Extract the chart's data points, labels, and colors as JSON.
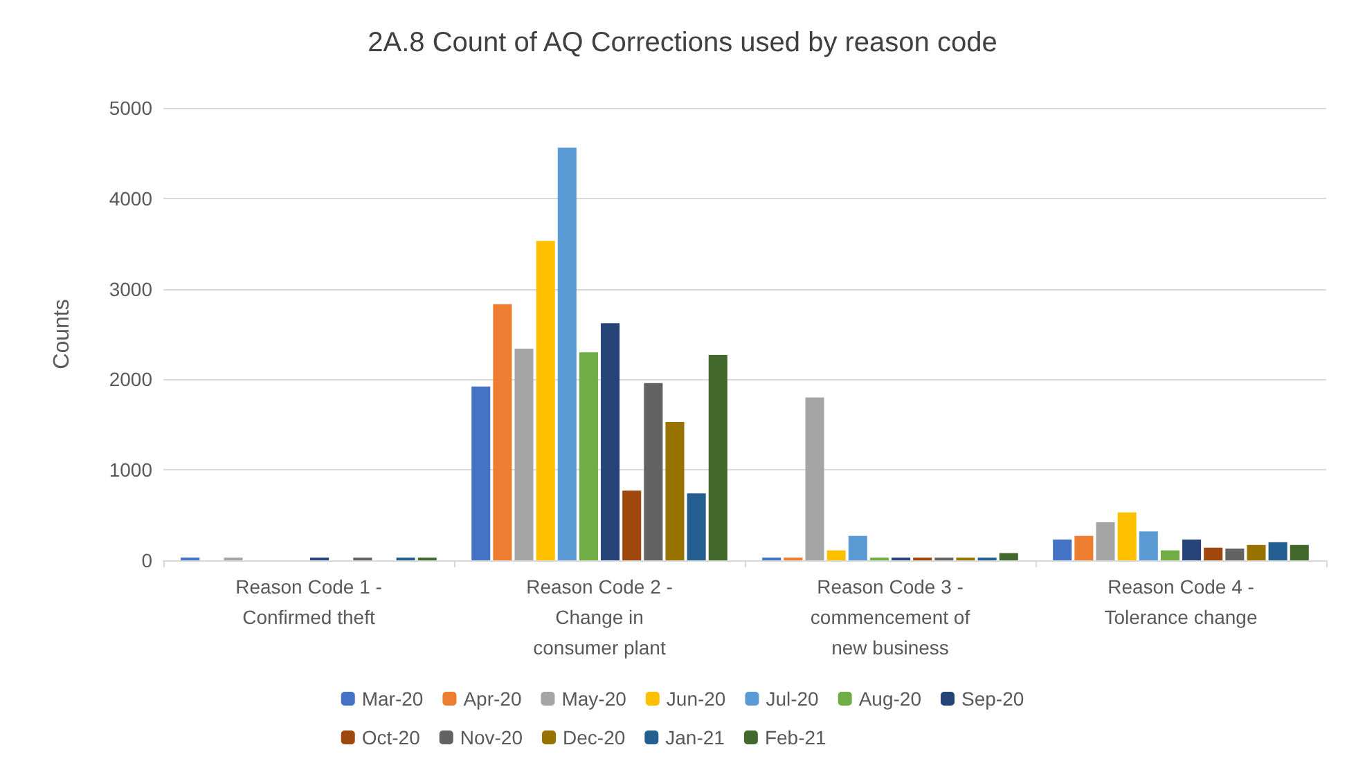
{
  "chart_data": {
    "type": "bar",
    "title": "2A.8 Count of AQ Corrections used by reason code",
    "ylabel": "Counts",
    "categories": [
      "Reason Code 1 -\nConfirmed theft",
      "Reason Code 2 -\nChange in\nconsumer plant",
      "Reason Code 3 -\ncommencement of\nnew business",
      "Reason Code 4 -\nTolerance change"
    ],
    "series": [
      {
        "name": "Mar-20",
        "color": "#4472c4",
        "values": [
          30,
          1920,
          30,
          230
        ]
      },
      {
        "name": "Apr-20",
        "color": "#ed7d31",
        "values": [
          0,
          2830,
          30,
          270
        ]
      },
      {
        "name": "May-20",
        "color": "#a5a5a5",
        "values": [
          30,
          2340,
          1800,
          420
        ]
      },
      {
        "name": "Jun-20",
        "color": "#ffc000",
        "values": [
          0,
          3530,
          110,
          530
        ]
      },
      {
        "name": "Jul-20",
        "color": "#5b9bd5",
        "values": [
          0,
          4560,
          270,
          320
        ]
      },
      {
        "name": "Aug-20",
        "color": "#70ad47",
        "values": [
          0,
          2300,
          30,
          110
        ]
      },
      {
        "name": "Sep-20",
        "color": "#264478",
        "values": [
          30,
          2620,
          30,
          230
        ]
      },
      {
        "name": "Oct-20",
        "color": "#9e480e",
        "values": [
          0,
          770,
          30,
          140
        ]
      },
      {
        "name": "Nov-20",
        "color": "#636363",
        "values": [
          30,
          1960,
          30,
          130
        ]
      },
      {
        "name": "Dec-20",
        "color": "#997300",
        "values": [
          0,
          1530,
          30,
          170
        ]
      },
      {
        "name": "Jan-21",
        "color": "#255e91",
        "values": [
          30,
          740,
          30,
          200
        ]
      },
      {
        "name": "Feb-21",
        "color": "#43682b",
        "values": [
          30,
          2270,
          80,
          170
        ]
      }
    ],
    "ylim": [
      0,
      5000
    ],
    "yticks": [
      0,
      1000,
      2000,
      3000,
      4000,
      5000
    ],
    "grid": "y",
    "legend": "bottom"
  }
}
